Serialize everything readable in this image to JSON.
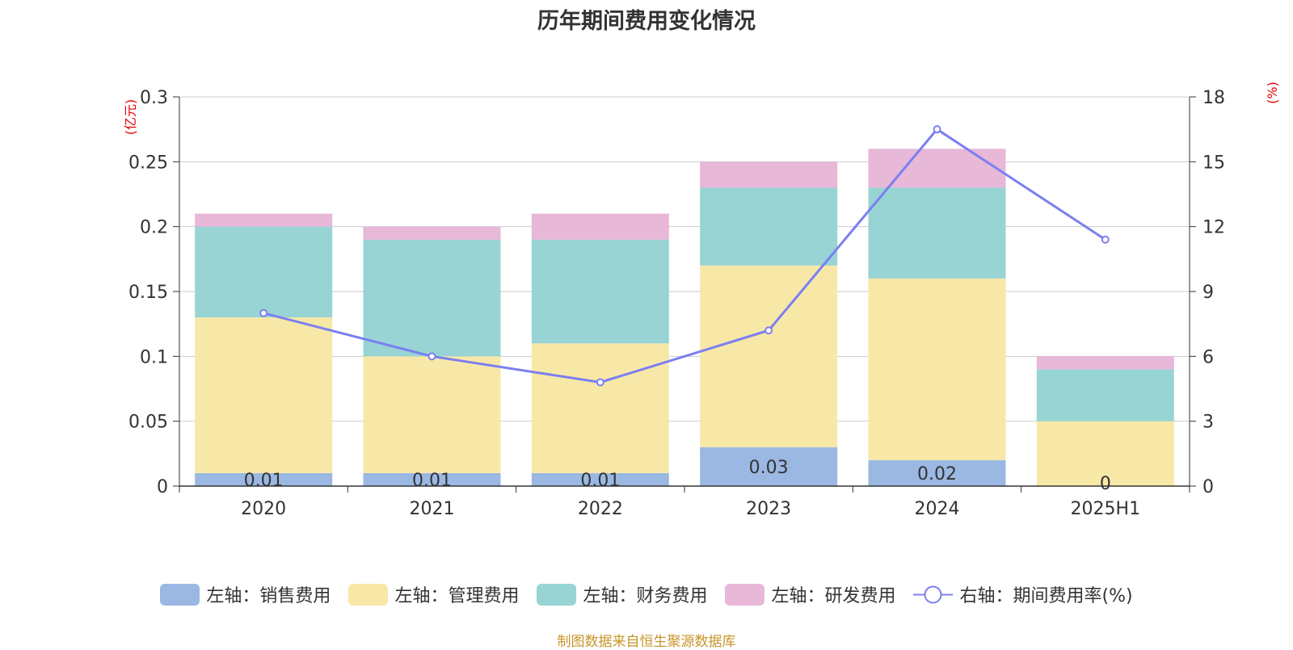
{
  "chart_data": {
    "type": "bar",
    "title": "历年期间费用变化情况",
    "categories": [
      "2020",
      "2021",
      "2022",
      "2023",
      "2024",
      "2025H1"
    ],
    "left_axis": {
      "unit": "(亿元)",
      "ylim": [
        0,
        0.3
      ],
      "ticks": [
        "0",
        "0.05",
        "0.1",
        "0.15",
        "0.2",
        "0.25",
        "0.3"
      ]
    },
    "right_axis": {
      "unit": "(%)",
      "ylim": [
        0,
        18
      ],
      "ticks": [
        "0",
        "3",
        "6",
        "9",
        "12",
        "15",
        "18"
      ]
    },
    "series": [
      {
        "name": "左轴：销售费用",
        "type": "bar",
        "axis": "left",
        "color": "#9bb8e3",
        "values": [
          0.01,
          0.01,
          0.01,
          0.03,
          0.02,
          0
        ],
        "labels": [
          "0.01",
          "0.01",
          "0.01",
          "0.03",
          "0.02",
          "0"
        ]
      },
      {
        "name": "左轴：管理费用",
        "type": "bar",
        "axis": "left",
        "color": "#f8e8a8",
        "values": [
          0.12,
          0.09,
          0.1,
          0.14,
          0.14,
          0.05
        ]
      },
      {
        "name": "左轴：财务费用",
        "type": "bar",
        "axis": "left",
        "color": "#98d4d4",
        "values": [
          0.07,
          0.09,
          0.08,
          0.06,
          0.07,
          0.04
        ]
      },
      {
        "name": "左轴：研发费用",
        "type": "bar",
        "axis": "left",
        "color": "#e8b8d8",
        "values": [
          0.01,
          0.01,
          0.02,
          0.02,
          0.03,
          0.01
        ]
      },
      {
        "name": "右轴：期间费用率(%)",
        "type": "line",
        "axis": "right",
        "color": "#7b7ff0",
        "values": [
          8.0,
          6.0,
          4.8,
          7.2,
          16.5,
          11.4
        ]
      }
    ],
    "grid": true,
    "legend_position": "bottom"
  },
  "source_note": "制图数据来自恒生聚源数据库"
}
